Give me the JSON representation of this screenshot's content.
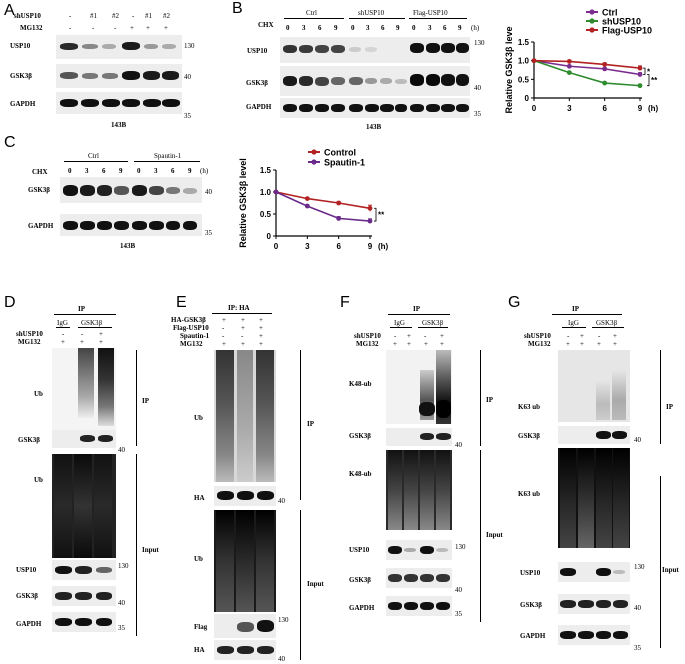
{
  "panels": {
    "A": {
      "letter": "A",
      "row_labels": [
        "shUSP10",
        "MG132"
      ],
      "shUSP10_marks": [
        "-",
        "#1",
        "#2",
        "-",
        "#1",
        "#2"
      ],
      "MG132_marks": [
        "-",
        "-",
        "-",
        "+",
        "+",
        "+"
      ],
      "blots": [
        "USP10",
        "GSK3β",
        "GAPDH"
      ],
      "mw": [
        "130",
        "40",
        "35"
      ],
      "cell_line": "143B"
    },
    "B": {
      "letter": "B",
      "cond_label": "CHX",
      "groups": [
        "Ctrl",
        "shUSP10",
        "Flag-USP10"
      ],
      "times": [
        "0",
        "3",
        "6",
        "9"
      ],
      "unit": "(h)",
      "blots": [
        "USP10",
        "GSK3β",
        "GAPDH"
      ],
      "mw": [
        "130",
        "40",
        "35"
      ],
      "cell_line": "143B"
    },
    "C": {
      "letter": "C",
      "cond_label": "CHX",
      "groups": [
        "Ctrl",
        "Spautin-1"
      ],
      "times": [
        "0",
        "3",
        "6",
        "9"
      ],
      "unit": "(h)",
      "blots": [
        "GSK3β",
        "GAPDH"
      ],
      "mw": [
        "40",
        "35"
      ],
      "cell_line": "143B"
    },
    "D": {
      "letter": "D",
      "ip_label": "IP",
      "ip_groups": [
        "IgG",
        "GSK3β"
      ],
      "row_labels": [
        "shUSP10",
        "MG132"
      ],
      "shUSP10_marks": [
        "-",
        "-",
        "+"
      ],
      "MG132_marks": [
        "+",
        "+",
        "+"
      ],
      "blots": [
        "Ub",
        "GSK3β",
        "Ub",
        "USP10",
        "GSK3β",
        "GAPDH"
      ],
      "mw": [
        "40",
        "130",
        "40",
        "35"
      ],
      "section_labels": [
        "IP",
        "Input"
      ]
    },
    "E": {
      "letter": "E",
      "ip_label": "IP: HA",
      "row_labels": [
        "HA-GSK3β",
        "Flag-USP10",
        "Spautin-1",
        "MG132"
      ],
      "marks": [
        [
          "+",
          "+",
          "+"
        ],
        [
          "-",
          "+",
          "+"
        ],
        [
          "-",
          "-",
          "+"
        ],
        [
          "+",
          "+",
          "+"
        ]
      ],
      "blots": [
        "Ub",
        "HA",
        "Ub",
        "Flag",
        "HA"
      ],
      "mw": [
        "40",
        "130",
        "40"
      ],
      "section_labels": [
        "IP",
        "Input"
      ]
    },
    "F": {
      "letter": "F",
      "ip_label": "IP",
      "ip_groups": [
        "IgG",
        "GSK3β"
      ],
      "row_labels": [
        "shUSP10",
        "MG132"
      ],
      "shUSP10_marks": [
        "-",
        "+",
        "-",
        "+"
      ],
      "MG132_marks": [
        "+",
        "+",
        "+",
        "+"
      ],
      "blots": [
        "K48-ub",
        "GSK3β",
        "K48-ub",
        "USP10",
        "GSK3β",
        "GAPDH"
      ],
      "mw": [
        "40",
        "130",
        "40",
        "35"
      ],
      "section_labels": [
        "IP",
        "Input"
      ]
    },
    "G": {
      "letter": "G",
      "ip_label": "IP",
      "ip_groups": [
        "IgG",
        "GSK3β"
      ],
      "row_labels": [
        "shUSP10",
        "MG132"
      ],
      "shUSP10_marks": [
        "-",
        "+",
        "-",
        "+"
      ],
      "MG132_marks": [
        "+",
        "+",
        "+",
        "+"
      ],
      "blots": [
        "K63 ub",
        "GSK3β",
        "K63 ub",
        "USP10",
        "GSK3β",
        "GAPDH"
      ],
      "mw": [
        "40",
        "130",
        "40",
        "35"
      ],
      "section_labels": [
        "IP",
        "Input"
      ]
    }
  },
  "chart_data": [
    {
      "type": "line",
      "panel": "B",
      "ylabel": "Relative GSK3β leve",
      "x": [
        0,
        3,
        6,
        9
      ],
      "xticks": [
        "0",
        "3",
        "6",
        "9"
      ],
      "x_unit": "(h)",
      "ylim": [
        0,
        1.5
      ],
      "yticks": [
        "0",
        "0.5",
        "1.0",
        "1.5"
      ],
      "legend_position": "top",
      "significance": [
        "*",
        "**"
      ],
      "series": [
        {
          "name": "Ctrl",
          "color": "#7b2d8e",
          "values": [
            1.0,
            0.85,
            0.78,
            0.63
          ],
          "errors": [
            0.02,
            0.03,
            0.03,
            0.05
          ]
        },
        {
          "name": "shUSP10",
          "color": "#2e8b2e",
          "values": [
            1.0,
            0.68,
            0.4,
            0.33
          ],
          "errors": [
            0.02,
            0.03,
            0.02,
            0.04
          ]
        },
        {
          "name": "Flag-USP10",
          "color": "#b22222",
          "values": [
            1.0,
            0.98,
            0.9,
            0.8
          ],
          "errors": [
            0.02,
            0.03,
            0.04,
            0.06
          ]
        }
      ]
    },
    {
      "type": "line",
      "panel": "C",
      "ylabel": "Relative GSK3β level",
      "x": [
        0,
        3,
        6,
        9
      ],
      "xticks": [
        "0",
        "3",
        "6",
        "9"
      ],
      "x_unit": "(h)",
      "ylim": [
        0,
        1.5
      ],
      "yticks": [
        "0",
        "0.5",
        "1.0",
        "1.5"
      ],
      "legend_position": "top",
      "significance": [
        "**"
      ],
      "series": [
        {
          "name": "Control",
          "color": "#b22222",
          "values": [
            1.0,
            0.85,
            0.75,
            0.63
          ],
          "errors": [
            0.02,
            0.02,
            0.03,
            0.07
          ]
        },
        {
          "name": "Spautin-1",
          "color": "#6a2a8a",
          "values": [
            1.0,
            0.68,
            0.4,
            0.34
          ],
          "errors": [
            0.02,
            0.03,
            0.04,
            0.05
          ]
        }
      ]
    }
  ]
}
